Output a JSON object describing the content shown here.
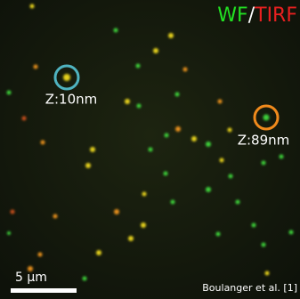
{
  "header": {
    "wf": "WF",
    "slash": "/",
    "tirf": "TIRF"
  },
  "annotations": [
    {
      "label": "Z:10nm"
    },
    {
      "label": "Z:89nm"
    }
  ],
  "scale_bar": {
    "label": "5 µm"
  },
  "credit": "Boulanger et al. [1]"
}
